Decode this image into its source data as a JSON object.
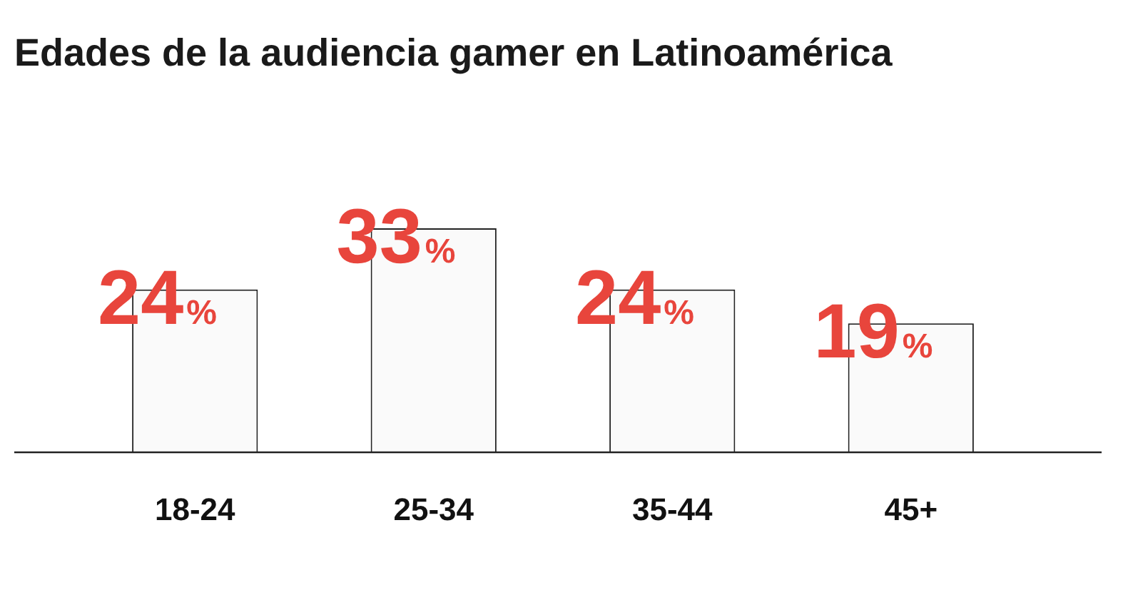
{
  "chart_data": {
    "type": "bar",
    "title": "Edades de la audiencia gamer en Latinoamérica",
    "categories": [
      "18-24",
      "25-34",
      "35-44",
      "45+"
    ],
    "values": [
      24,
      33,
      24,
      19
    ],
    "value_labels": [
      "24%",
      "33%",
      "24%",
      "19%"
    ],
    "color": "#fafafa",
    "grid": false,
    "legend": false
  }
}
